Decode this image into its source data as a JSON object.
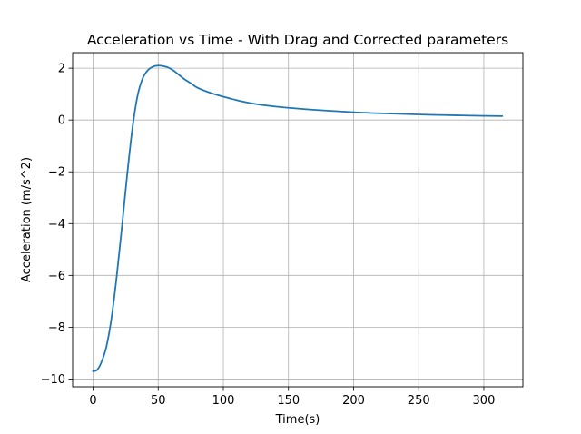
{
  "chart_data": {
    "type": "line",
    "title": "Acceleration vs Time - With Drag and Corrected parameters",
    "xlabel": "Time(s)",
    "ylabel": "Acceleration (m/s^2)",
    "xlim": [
      -15.7,
      330.0
    ],
    "ylim": [
      -10.3,
      2.6
    ],
    "xticks": [
      0,
      50,
      100,
      150,
      200,
      250,
      300
    ],
    "yticks": [
      -10,
      -8,
      -6,
      -4,
      -2,
      0,
      2
    ],
    "xtick_labels": [
      "0",
      "50",
      "100",
      "150",
      "200",
      "250",
      "300"
    ],
    "ytick_labels": [
      "−10",
      "−8",
      "−6",
      "−4",
      "−2",
      "0",
      "2"
    ],
    "grid": true,
    "series": [
      {
        "color": "#1f77b4",
        "x": [
          0,
          3,
          6,
          10,
          14,
          18,
          22,
          26,
          30,
          34,
          38,
          42,
          46,
          50,
          54,
          58,
          62,
          66,
          70,
          75,
          80,
          90,
          100,
          110,
          120,
          130,
          140,
          150,
          165,
          180,
          200,
          220,
          240,
          260,
          280,
          300,
          314
        ],
        "y": [
          -9.7,
          -9.65,
          -9.4,
          -8.8,
          -7.7,
          -6.1,
          -4.2,
          -2.2,
          -0.4,
          0.9,
          1.6,
          1.92,
          2.06,
          2.1,
          2.08,
          2.02,
          1.9,
          1.74,
          1.58,
          1.42,
          1.25,
          1.05,
          0.9,
          0.77,
          0.66,
          0.58,
          0.52,
          0.47,
          0.41,
          0.36,
          0.3,
          0.26,
          0.23,
          0.2,
          0.18,
          0.16,
          0.15
        ]
      }
    ]
  }
}
